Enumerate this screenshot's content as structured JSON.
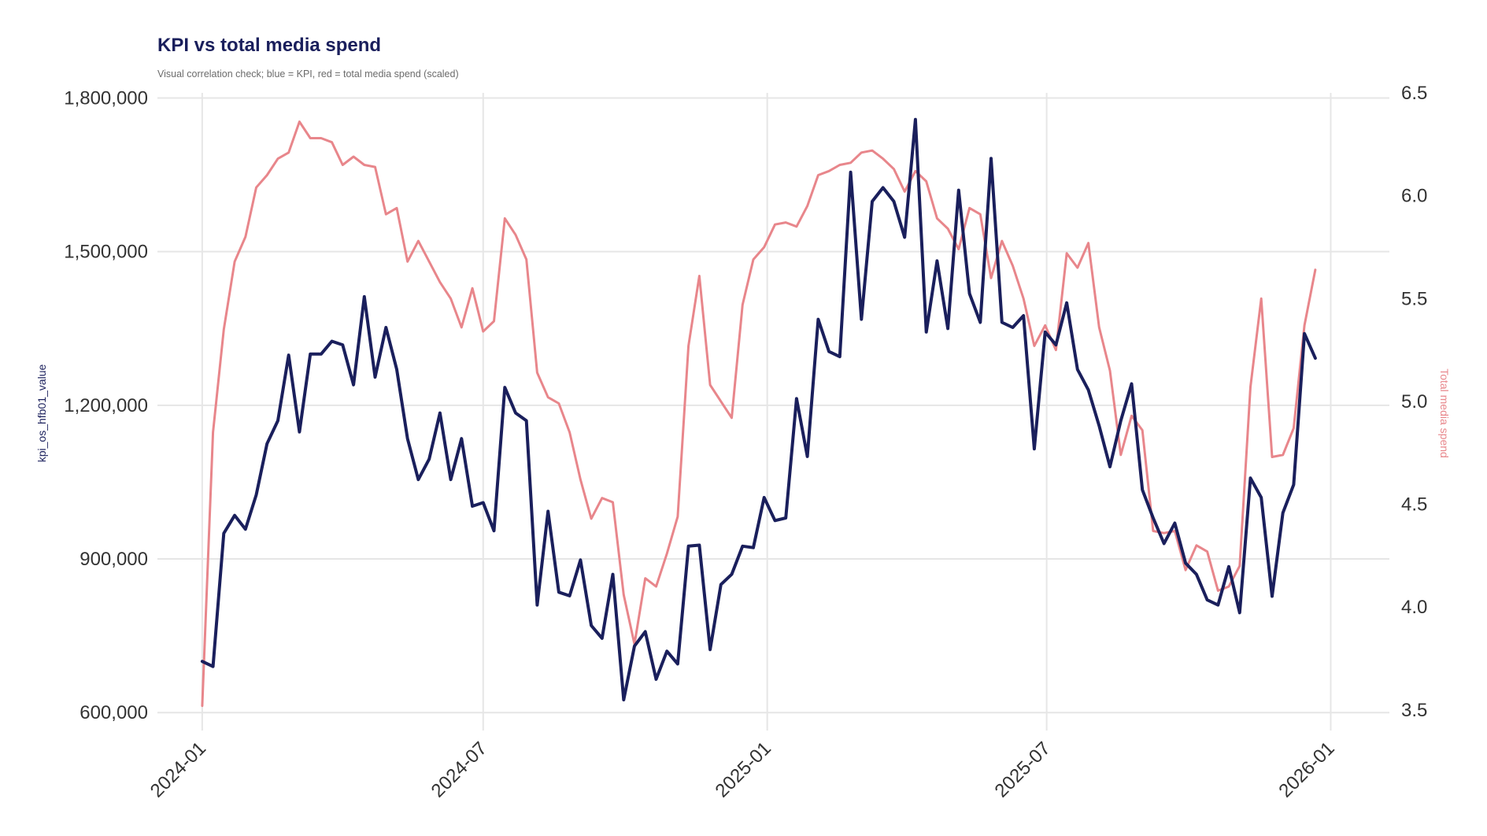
{
  "chart_data": {
    "type": "line",
    "title": "KPI vs total media spend",
    "subtitle": "Visual correlation check; blue = KPI, red = total media spend (scaled)",
    "ylabel": "kpi_os_hfb01_value",
    "ylabel_right": "Total media spend",
    "ylim": [
      565000,
      1810000
    ],
    "ylim_right": [
      3.4,
      6.5
    ],
    "yticks": [
      600000,
      900000,
      1200000,
      1500000,
      1800000
    ],
    "ytick_labels": [
      "600,000",
      "900,000",
      "1,200,000",
      "1,500,000",
      "1,800,000"
    ],
    "yticks_right": [
      3.5,
      4.0,
      4.5,
      5.0,
      5.5,
      6.0,
      6.5
    ],
    "ytick_labels_right": [
      "3.5",
      "4.0",
      "4.5",
      "5.0",
      "5.5",
      "6.0",
      "6.5"
    ],
    "xlim": [
      "2023-12-03",
      "2026-02-08"
    ],
    "xticks": [
      "2024-01-01",
      "2024-07-01",
      "2025-01-01",
      "2025-07-01",
      "2026-01-01"
    ],
    "xtick_labels": [
      "2024-01",
      "2024-07",
      "2025-01",
      "2025-07",
      "2026-01"
    ],
    "grid": true,
    "legend": "none",
    "x_start": "2024-01-01",
    "x_step_days": 7,
    "series": [
      {
        "axis": "left",
        "color": "#1a1f5c",
        "values": [
          700000,
          690000,
          950000,
          985000,
          958000,
          1025000,
          1125000,
          1170000,
          1298000,
          1148000,
          1300000,
          1300000,
          1325000,
          1318000,
          1240000,
          1412000,
          1255000,
          1352000,
          1270000,
          1135000,
          1055000,
          1095000,
          1185000,
          1055000,
          1135000,
          1003000,
          1010000,
          955000,
          1235000,
          1185000,
          1170000,
          810000,
          993000,
          835000,
          828000,
          898000,
          770000,
          745000,
          870000,
          625000,
          730000,
          758000,
          665000,
          720000,
          695000,
          925000,
          927000,
          723000,
          850000,
          870000,
          925000,
          922000,
          1020000,
          975000,
          980000,
          1213000,
          1100000,
          1368000,
          1305000,
          1295000,
          1655000,
          1368000,
          1598000,
          1625000,
          1598000,
          1528000,
          1758000,
          1343000,
          1482000,
          1350000,
          1620000,
          1418000,
          1362000,
          1682000,
          1362000,
          1352000,
          1375000,
          1115000,
          1343000,
          1318000,
          1400000,
          1270000,
          1230000,
          1160000,
          1080000,
          1170000,
          1242000,
          1035000,
          980000,
          930000,
          970000,
          892000,
          870000,
          820000,
          810000,
          885000,
          795000,
          1058000,
          1020000,
          827000,
          990000,
          1045000,
          1340000,
          1292000
        ]
      },
      {
        "axis": "right",
        "color": "#e8868b",
        "values": [
          3.52,
          4.85,
          5.35,
          5.68,
          5.8,
          6.04,
          6.1,
          6.18,
          6.21,
          6.36,
          6.28,
          6.28,
          6.26,
          6.15,
          6.19,
          6.15,
          6.14,
          5.91,
          5.94,
          5.68,
          5.78,
          5.68,
          5.58,
          5.5,
          5.36,
          5.55,
          5.34,
          5.39,
          5.89,
          5.81,
          5.69,
          5.14,
          5.02,
          4.99,
          4.85,
          4.62,
          4.43,
          4.53,
          4.51,
          4.06,
          3.82,
          4.14,
          4.1,
          4.26,
          4.44,
          5.27,
          5.61,
          5.08,
          5.0,
          4.92,
          5.47,
          5.69,
          5.75,
          5.86,
          5.87,
          5.85,
          5.95,
          6.1,
          6.12,
          6.15,
          6.16,
          6.21,
          6.22,
          6.18,
          6.13,
          6.02,
          6.12,
          6.07,
          5.89,
          5.84,
          5.74,
          5.94,
          5.91,
          5.6,
          5.78,
          5.66,
          5.5,
          5.27,
          5.37,
          5.25,
          5.72,
          5.65,
          5.77,
          5.36,
          5.15,
          4.74,
          4.93,
          4.86,
          4.37,
          4.36,
          4.37,
          4.18,
          4.3,
          4.27,
          4.08,
          4.1,
          4.2,
          5.07,
          5.5,
          4.73,
          4.74,
          4.87,
          5.37,
          5.64
        ]
      }
    ]
  }
}
